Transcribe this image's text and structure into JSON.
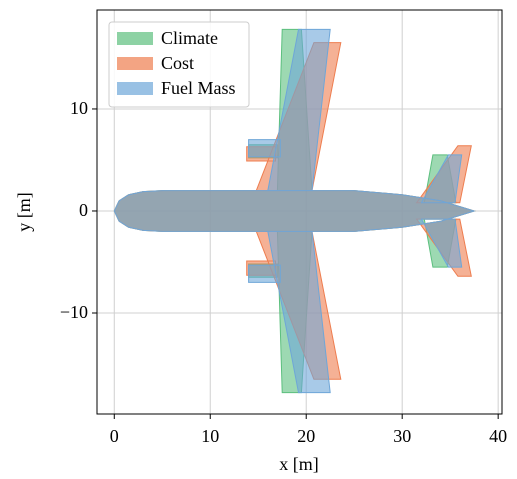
{
  "chart_data": {
    "type": "polygon",
    "xlabel": "x [m]",
    "ylabel": "y [m]",
    "xlim": [
      -1.8,
      40.4
    ],
    "ylim": [
      -19.9,
      19.7
    ],
    "xticks": [
      0,
      10,
      20,
      30,
      40
    ],
    "yticks": [
      {
        "value": -10,
        "label": "−10"
      },
      0,
      10
    ],
    "grid": true,
    "legend": "upper left",
    "series": [
      {
        "name": "Climate",
        "color": "#5cbf7e",
        "x": [
          0,
          0.5,
          1.5,
          3,
          5,
          25,
          30,
          34,
          37.5,
          34,
          30,
          25,
          5,
          3,
          1.5,
          0.5,
          null,
          17,
          17.5,
          19.5,
          20.6,
          null,
          17,
          17.5,
          19.5,
          20.6,
          null,
          14,
          14,
          17,
          17,
          null,
          14,
          14,
          17,
          17,
          null,
          32.3,
          33.2,
          34.7,
          35.6,
          null,
          32.3,
          33.2,
          34.7,
          35.6
        ],
        "y": [
          0,
          1,
          1.6,
          1.9,
          2,
          2,
          1.6,
          1,
          0,
          -1,
          -1.6,
          -2,
          -2,
          -1.9,
          -1.6,
          -1,
          null,
          2,
          17.8,
          17.8,
          2,
          null,
          -2,
          -17.8,
          -17.8,
          -2,
          null,
          5.2,
          6.5,
          6.5,
          5.2,
          null,
          -5.2,
          -6.5,
          -6.5,
          -5.2,
          null,
          0.8,
          5.5,
          5.5,
          0.8,
          null,
          -0.8,
          -5.5,
          -5.5,
          -0.8
        ]
      },
      {
        "name": "Cost",
        "color": "#ee7d4f",
        "x": [
          0,
          0.5,
          1.5,
          3,
          5,
          25,
          30,
          34,
          37.5,
          34,
          30,
          25,
          5,
          3,
          1.5,
          0.5,
          null,
          14.8,
          20.8,
          23.6,
          20.6,
          null,
          14.8,
          20.8,
          23.6,
          20.6,
          null,
          13.8,
          13.8,
          16.8,
          16.8,
          null,
          13.8,
          13.8,
          16.8,
          16.8,
          null,
          31.5,
          35.8,
          37.2,
          36,
          null,
          31.5,
          35.8,
          37.2,
          36
        ],
        "y": [
          0,
          1,
          1.6,
          1.9,
          2,
          2,
          1.6,
          1,
          0,
          -1,
          -1.6,
          -2,
          -2,
          -1.9,
          -1.6,
          -1,
          null,
          2,
          16.5,
          16.5,
          2,
          null,
          -2,
          -16.5,
          -16.5,
          -2,
          null,
          4.9,
          6.3,
          6.3,
          4.9,
          null,
          -4.9,
          -6.3,
          -6.3,
          -4.9,
          null,
          0.8,
          6.4,
          6.4,
          0.8,
          null,
          -0.8,
          -6.4,
          -6.4,
          -0.8
        ]
      },
      {
        "name": "Fuel Mass",
        "color": "#6ea6d8",
        "x": [
          0,
          0.5,
          1.5,
          3,
          5,
          25,
          30,
          34,
          37.5,
          34,
          30,
          25,
          5,
          3,
          1.5,
          0.5,
          null,
          16,
          19.2,
          22.5,
          20.6,
          null,
          16,
          19.2,
          22.5,
          20.6,
          null,
          14,
          14,
          17.3,
          17.3,
          null,
          14,
          14,
          17.3,
          17.3,
          null,
          32,
          34.8,
          36.2,
          35.5,
          null,
          32,
          34.8,
          36.2,
          35.5
        ],
        "y": [
          0,
          1,
          1.6,
          1.9,
          2,
          2,
          1.6,
          1,
          0,
          -1,
          -1.6,
          -2,
          -2,
          -1.9,
          -1.6,
          -1,
          null,
          2,
          17.8,
          17.8,
          2,
          null,
          -2,
          -17.8,
          -17.8,
          -2,
          null,
          5.3,
          7,
          7,
          5.3,
          null,
          -5.3,
          -7,
          -7,
          -5.3,
          null,
          0.8,
          5.5,
          5.5,
          0.8,
          null,
          -0.8,
          -5.5,
          -5.5,
          -0.8
        ]
      }
    ]
  }
}
